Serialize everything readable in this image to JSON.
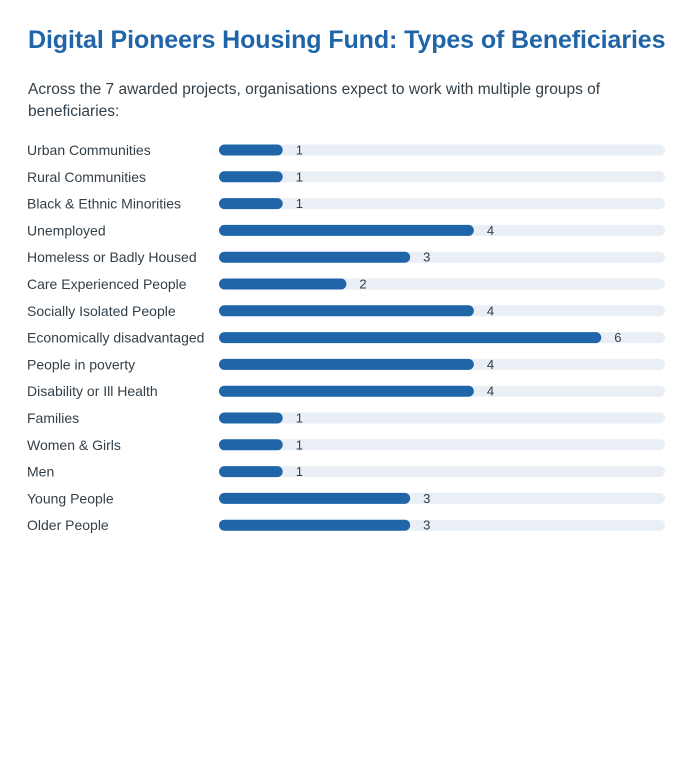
{
  "header": {
    "title": "Digital Pioneers Housing Fund: Types of Beneficiaries",
    "subtitle": "Across the 7 awarded projects, organisations expect to work with multiple groups of beneficiaries:"
  },
  "colors": {
    "title": "#1f65a8",
    "bar": "#1f65a8",
    "track": "#e9eff5",
    "text": "#333f48"
  },
  "chart_data": {
    "type": "bar",
    "orientation": "horizontal",
    "categories": [
      "Urban Communities",
      "Rural Communities",
      "Black & Ethnic Minorities",
      "Unemployed",
      "Homeless or Badly Housed",
      "Care Experienced People",
      "Socially Isolated People",
      "Economically disadvantaged",
      "People in poverty",
      "Disability or Ill Health",
      "Families",
      "Women & Girls",
      "Men",
      "Young People",
      "Older People"
    ],
    "values": [
      1,
      1,
      1,
      4,
      3,
      2,
      4,
      6,
      4,
      4,
      1,
      1,
      1,
      3,
      3
    ],
    "xlim": [
      0,
      7
    ],
    "data_labels": true,
    "grid": false,
    "legend": "none"
  }
}
